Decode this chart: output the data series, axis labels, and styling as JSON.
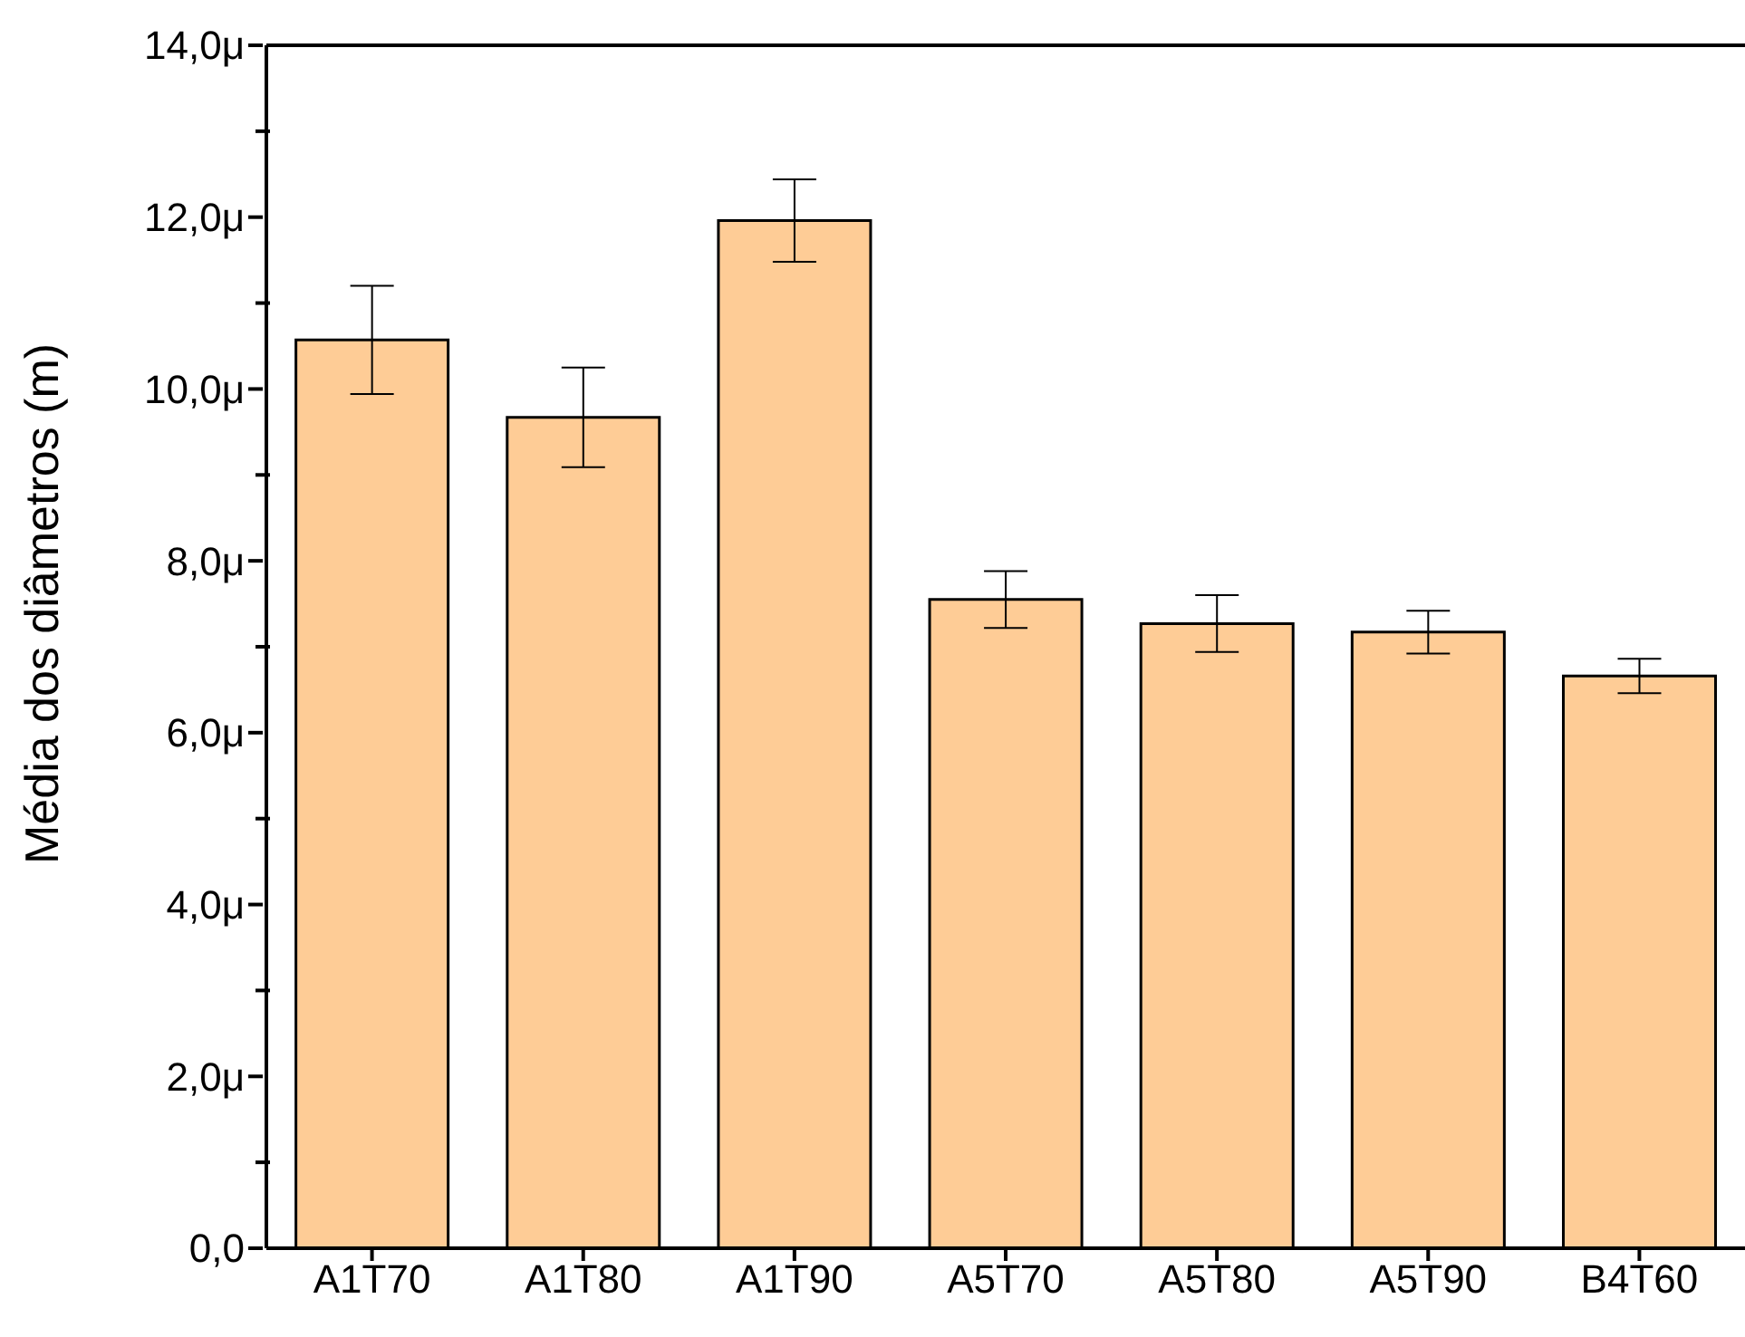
{
  "chart_data": {
    "type": "bar",
    "ylabel": "Média dos diâmetros (m)",
    "categories": [
      "A1T70",
      "A1T80",
      "A1T90",
      "A5T70",
      "A5T80",
      "A5T90",
      "B4T60"
    ],
    "values": [
      10.57,
      9.67,
      11.96,
      7.55,
      7.27,
      7.17,
      6.66
    ],
    "errors": [
      0.63,
      0.58,
      0.48,
      0.33,
      0.33,
      0.25,
      0.2
    ],
    "color": "#fecc96",
    "ylim": [
      0,
      14
    ],
    "yticks": [
      {
        "value": 0,
        "label": "0,0"
      },
      {
        "value": 1,
        "label": null
      },
      {
        "value": 2,
        "label": "2,0μ"
      },
      {
        "value": 3,
        "label": null
      },
      {
        "value": 4,
        "label": "4,0μ"
      },
      {
        "value": 5,
        "label": null
      },
      {
        "value": 6,
        "label": "6,0μ"
      },
      {
        "value": 7,
        "label": null
      },
      {
        "value": 8,
        "label": "8,0μ"
      },
      {
        "value": 9,
        "label": null
      },
      {
        "value": 10,
        "label": "10,0μ"
      },
      {
        "value": 11,
        "label": null
      },
      {
        "value": 12,
        "label": "12,0μ"
      },
      {
        "value": 13,
        "label": null
      },
      {
        "value": 14,
        "label": "14,0μ"
      }
    ],
    "grid": false
  }
}
